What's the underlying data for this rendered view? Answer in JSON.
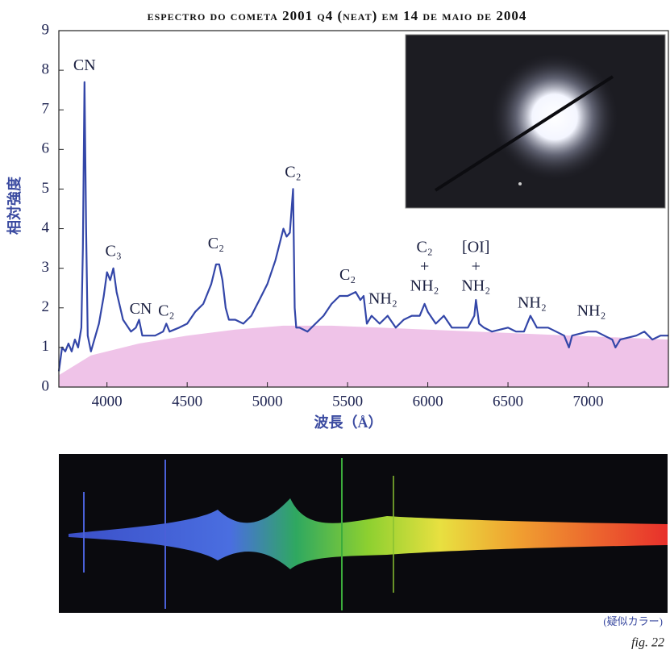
{
  "chart_data": {
    "type": "line",
    "title": "espectro do cometa 2001 q4 (neat) em 14 de maio de 2004",
    "x_label": "波長（Å）",
    "y_label": "相対強度",
    "xlim": [
      3700,
      7500
    ],
    "xticks": [
      4000,
      4500,
      5000,
      5500,
      6000,
      6500,
      7000
    ],
    "ylim": [
      0,
      9
    ],
    "yticks": [
      0,
      1,
      2,
      3,
      4,
      5,
      6,
      7,
      8,
      9
    ],
    "grid": false,
    "series": [
      {
        "color": "#3346a8",
        "fill": false,
        "x": [
          3700,
          3720,
          3740,
          3760,
          3780,
          3800,
          3820,
          3840,
          3850,
          3860,
          3870,
          3880,
          3900,
          3950,
          3980,
          4000,
          4020,
          4040,
          4060,
          4100,
          4150,
          4180,
          4200,
          4220,
          4300,
          4350,
          4370,
          4390,
          4450,
          4500,
          4550,
          4600,
          4650,
          4680,
          4700,
          4720,
          4740,
          4760,
          4800,
          4850,
          4900,
          4950,
          5000,
          5050,
          5100,
          5120,
          5140,
          5160,
          5170,
          5180,
          5200,
          5250,
          5300,
          5350,
          5400,
          5450,
          5500,
          5550,
          5580,
          5600,
          5620,
          5650,
          5700,
          5750,
          5800,
          5850,
          5900,
          5950,
          5980,
          6000,
          6050,
          6100,
          6150,
          6200,
          6250,
          6290,
          6300,
          6320,
          6350,
          6400,
          6500,
          6550,
          6600,
          6640,
          6680,
          6750,
          6800,
          6850,
          6880,
          6900,
          7000,
          7050,
          7100,
          7150,
          7170,
          7200,
          7300,
          7350,
          7400,
          7450,
          7500
        ],
        "values": [
          0.4,
          1.0,
          0.9,
          1.1,
          0.9,
          1.2,
          1.0,
          1.5,
          3.5,
          7.7,
          4.0,
          1.3,
          0.9,
          1.6,
          2.3,
          2.9,
          2.7,
          3.0,
          2.4,
          1.7,
          1.4,
          1.5,
          1.7,
          1.3,
          1.3,
          1.4,
          1.6,
          1.4,
          1.5,
          1.6,
          1.9,
          2.1,
          2.6,
          3.1,
          3.1,
          2.7,
          2.0,
          1.7,
          1.7,
          1.6,
          1.8,
          2.2,
          2.6,
          3.2,
          4.0,
          3.8,
          3.9,
          5.0,
          2.0,
          1.5,
          1.5,
          1.4,
          1.6,
          1.8,
          2.1,
          2.3,
          2.3,
          2.4,
          2.2,
          2.3,
          1.6,
          1.8,
          1.6,
          1.8,
          1.5,
          1.7,
          1.8,
          1.8,
          2.1,
          1.9,
          1.6,
          1.8,
          1.5,
          1.5,
          1.5,
          1.8,
          2.2,
          1.6,
          1.5,
          1.4,
          1.5,
          1.4,
          1.4,
          1.8,
          1.5,
          1.5,
          1.4,
          1.3,
          1.0,
          1.3,
          1.4,
          1.4,
          1.3,
          1.2,
          1.0,
          1.2,
          1.3,
          1.4,
          1.2,
          1.3,
          1.3
        ]
      },
      {
        "color": "#efc3e8",
        "fill": true,
        "x": [
          3700,
          3900,
          4200,
          4500,
          4800,
          5100,
          5400,
          5700,
          6000,
          6300,
          6600,
          6900,
          7200,
          7500
        ],
        "values": [
          0.3,
          0.8,
          1.1,
          1.3,
          1.45,
          1.55,
          1.55,
          1.5,
          1.45,
          1.4,
          1.35,
          1.3,
          1.25,
          1.2
        ]
      }
    ],
    "annotations": [
      {
        "lines": [
          "CN"
        ],
        "x": 3860,
        "y": 8.1
      },
      {
        "lines": [
          "C₃"
        ],
        "x": 4040,
        "y": 3.4
      },
      {
        "lines": [
          "CN"
        ],
        "x": 4210,
        "y": 1.95
      },
      {
        "lines": [
          "C₂"
        ],
        "x": 4370,
        "y": 1.9
      },
      {
        "lines": [
          "C₂"
        ],
        "x": 4680,
        "y": 3.6
      },
      {
        "lines": [
          "C₂"
        ],
        "x": 5160,
        "y": 5.4
      },
      {
        "lines": [
          "C₂"
        ],
        "x": 5500,
        "y": 2.8
      },
      {
        "lines": [
          "NH₂"
        ],
        "x": 5720,
        "y": 2.2
      },
      {
        "lines": [
          "C₂",
          "+",
          "NH₂"
        ],
        "x": 5980,
        "y": 3.5
      },
      {
        "lines": [
          "[OI]",
          "+",
          "NH₂"
        ],
        "x": 6300,
        "y": 3.5
      },
      {
        "lines": [
          "NH₂"
        ],
        "x": 6650,
        "y": 2.1
      },
      {
        "lines": [
          "NH₂"
        ],
        "x": 7020,
        "y": 1.9
      }
    ],
    "caption": "(疑似カラー)",
    "figure_label": "fig. 22"
  }
}
